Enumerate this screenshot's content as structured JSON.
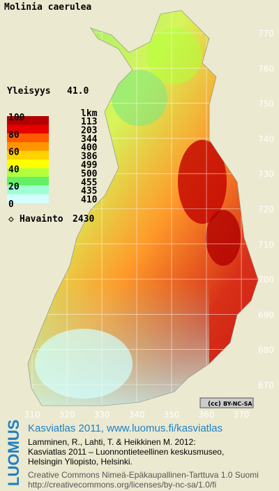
{
  "title": "Molinia caerulea",
  "frequency": {
    "label": "Yleisyys",
    "value": "41.0"
  },
  "legend": {
    "header": "lkm",
    "percent_labels": [
      "100",
      "80",
      "60",
      "40",
      "20",
      "0"
    ],
    "classes": [
      {
        "count": "113",
        "color": "#b40000"
      },
      {
        "count": "203",
        "color": "#e60000"
      },
      {
        "count": "344",
        "color": "#ff5a00"
      },
      {
        "count": "400",
        "color": "#ff9600"
      },
      {
        "count": "386",
        "color": "#ffd200"
      },
      {
        "count": "499",
        "color": "#ffff00"
      },
      {
        "count": "500",
        "color": "#b4ff3c"
      },
      {
        "count": "455",
        "color": "#64f064"
      },
      {
        "count": "435",
        "color": "#a0ffd2"
      },
      {
        "count": "410",
        "color": "#d2ffff"
      }
    ]
  },
  "observations": {
    "label": "Havainto",
    "value": "2430"
  },
  "x_labels": [
    "310",
    "320",
    "330",
    "340",
    "350",
    "360",
    "370"
  ],
  "y_labels": [
    "770",
    "760",
    "750",
    "740",
    "730",
    "720",
    "710",
    "700",
    "690",
    "680",
    "670"
  ],
  "badge": "BY-NC-SA",
  "footer": {
    "logo": "LUOMUS",
    "heading": "Kasviatlas 2011, www.luomus.fi/kasviatlas",
    "citation": [
      "Lamminen, R., Lahti, T. & Heikkinen M. 2012:",
      "Kasviatlas 2011 – Luonnontieteellinen keskusmuseo,",
      "Helsingin Yliopisto, Helsinki."
    ],
    "license": [
      "Creative Commons Nimeä-Epäkaupallinen-Tarttuva 1.0 Suomi",
      "http://creativecommons.org/licenses/by-nc-sa/1.0/fi"
    ]
  }
}
